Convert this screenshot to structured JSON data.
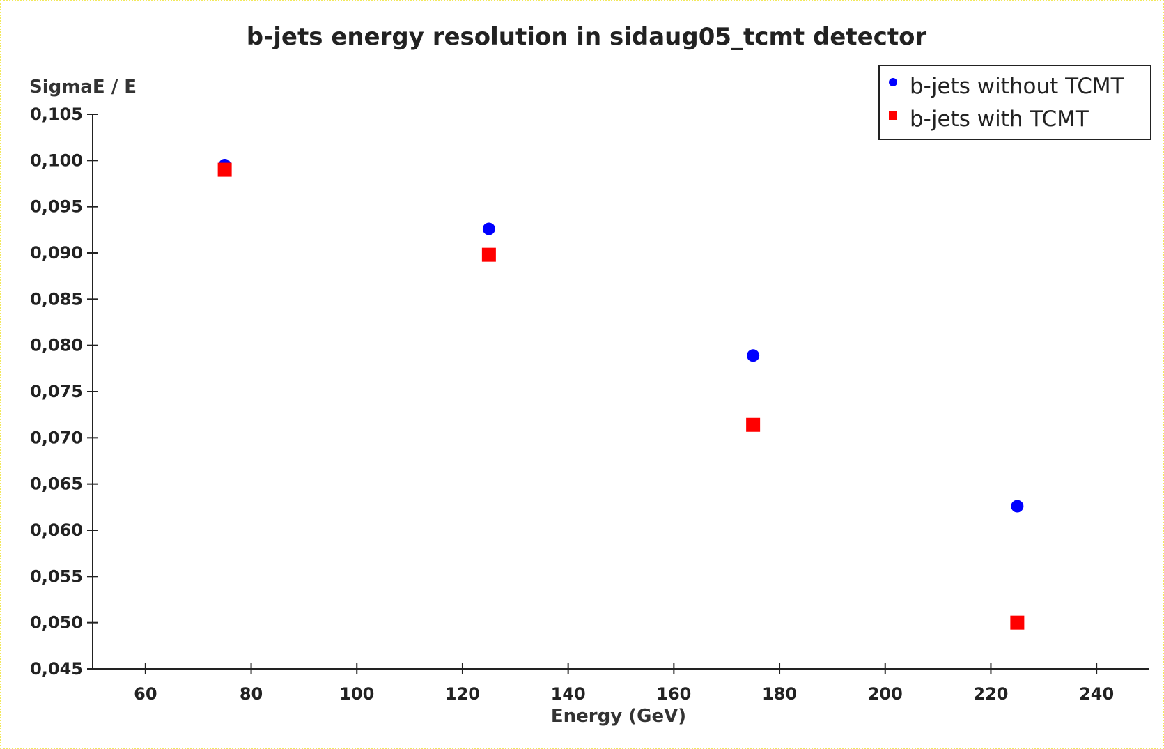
{
  "chart_data": {
    "type": "scatter",
    "title": "b-jets energy resolution in sidaug05_tcmt detector",
    "xlabel": "Energy (GeV)",
    "ylabel": "SigmaE / E",
    "xlim": [
      50,
      250
    ],
    "ylim": [
      0.045,
      0.105
    ],
    "x_ticks": [
      60,
      80,
      100,
      120,
      140,
      160,
      180,
      200,
      220,
      240
    ],
    "y_ticks": [
      "0,045",
      "0,050",
      "0,055",
      "0,060",
      "0,065",
      "0,070",
      "0,075",
      "0,080",
      "0,085",
      "0,090",
      "0,095",
      "0,100",
      "0,105"
    ],
    "y_tick_values": [
      0.045,
      0.05,
      0.055,
      0.06,
      0.065,
      0.07,
      0.075,
      0.08,
      0.085,
      0.09,
      0.095,
      0.1,
      0.105
    ],
    "grid": false,
    "legend_position": "top-right",
    "series": [
      {
        "name": "b-jets without TCMT",
        "marker": "circle",
        "color": "#0000ff",
        "x": [
          75,
          125,
          175,
          225
        ],
        "y": [
          0.0995,
          0.0926,
          0.0789,
          0.0626
        ]
      },
      {
        "name": "b-jets with TCMT",
        "marker": "square",
        "color": "#ff0000",
        "x": [
          75,
          125,
          175,
          225
        ],
        "y": [
          0.099,
          0.0898,
          0.0714,
          0.05
        ]
      }
    ]
  }
}
